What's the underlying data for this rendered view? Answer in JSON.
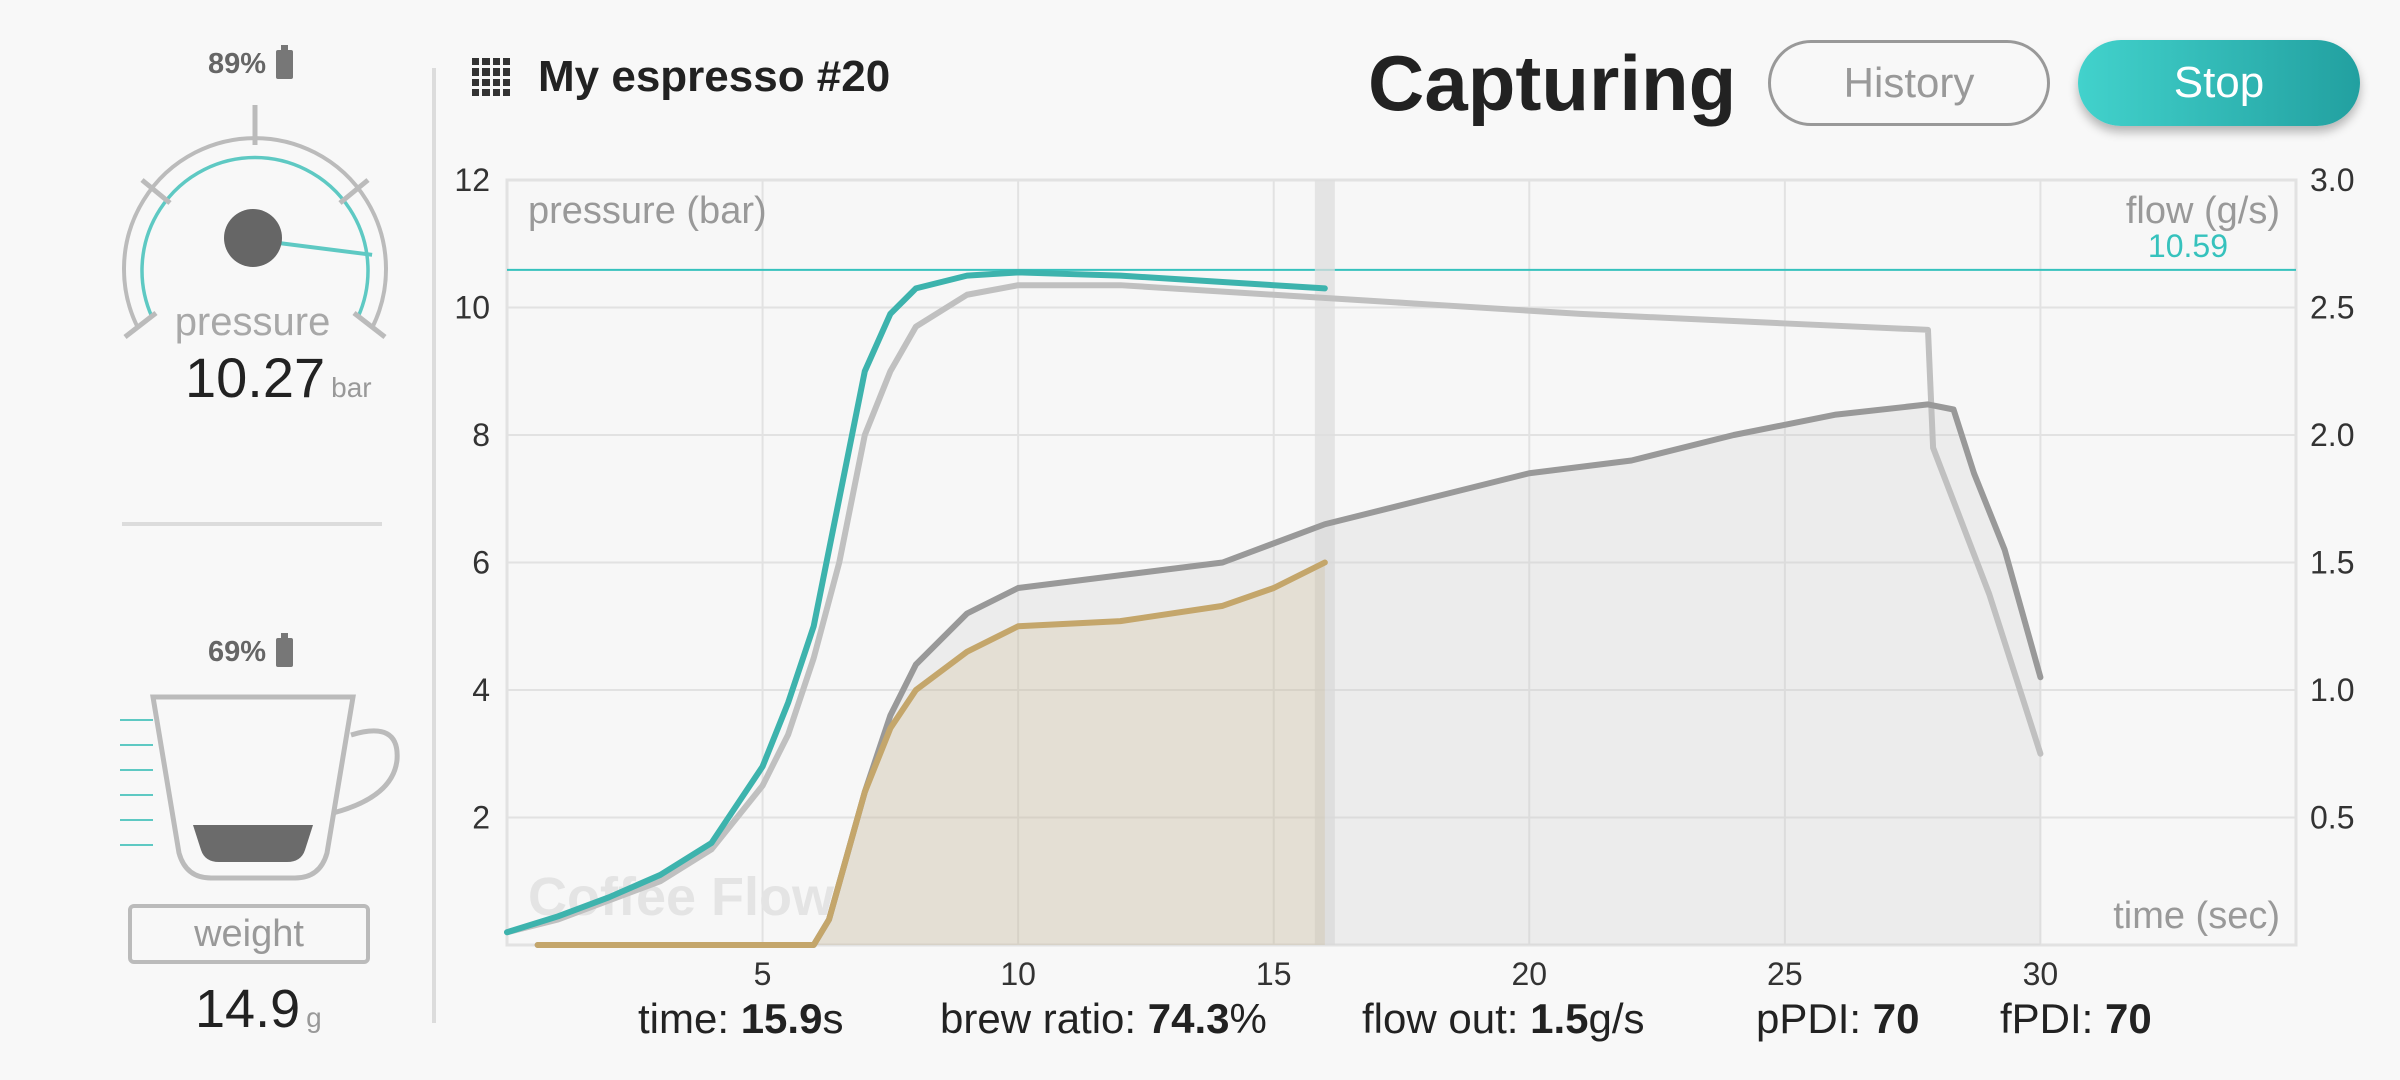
{
  "header": {
    "shot_name": "My espresso #20",
    "status": "Capturing",
    "history_label": "History",
    "stop_label": "Stop"
  },
  "pressure_gauge": {
    "battery": "89%",
    "label": "pressure",
    "value": "10.27",
    "unit": "bar",
    "level_fraction": 0.86
  },
  "weight_gauge": {
    "battery": "69%",
    "label": "weight",
    "value": "14.9",
    "unit": "g"
  },
  "stats": {
    "time_label": "time:",
    "time_value": "15.9",
    "time_unit": "s",
    "ratio_label": "brew ratio:",
    "ratio_value": "74.3",
    "ratio_unit": "%",
    "flow_label": "flow out:",
    "flow_value": "1.5",
    "flow_unit": "g/s",
    "ppdi_label": "pPDI:",
    "ppdi_value": "70",
    "fpdi_label": "fPDI:",
    "fpdi_value": "70"
  },
  "colors": {
    "pressure_live": "#3db3ad",
    "flow_live": "#c4a66b",
    "reference_pressure": "#c0c0c0",
    "reference_flow": "#999999",
    "accent": "#36c2bd"
  },
  "chart_data": {
    "type": "line",
    "ylabel": "pressure (bar)",
    "y2label": "flow (g/s)",
    "xlabel": "time (sec)",
    "watermark": "Coffee Flow",
    "xlim": [
      0,
      35
    ],
    "ylim": [
      0,
      12
    ],
    "y2lim": [
      0,
      3
    ],
    "xticks": [
      5,
      10,
      15,
      20,
      25,
      30
    ],
    "yticks": [
      2,
      4,
      6,
      8,
      10,
      12
    ],
    "y2ticks": [
      "0.5",
      "1.0",
      "1.5",
      "2.0",
      "2.5",
      "3.0"
    ],
    "target_pressure": 10.59,
    "target_label": "10.59",
    "current_time": 16.0,
    "grid": true,
    "series": [
      {
        "axis": "pressure",
        "kind": "reference",
        "points": [
          [
            0,
            0.2
          ],
          [
            1,
            0.4
          ],
          [
            2,
            0.7
          ],
          [
            3,
            1.0
          ],
          [
            4,
            1.5
          ],
          [
            5,
            2.5
          ],
          [
            5.5,
            3.3
          ],
          [
            6,
            4.5
          ],
          [
            6.5,
            6.0
          ],
          [
            7,
            8.0
          ],
          [
            7.5,
            9.0
          ],
          [
            8,
            9.7
          ],
          [
            9,
            10.2
          ],
          [
            10,
            10.35
          ],
          [
            12,
            10.35
          ],
          [
            15,
            10.2
          ],
          [
            18,
            10.05
          ],
          [
            21,
            9.9
          ],
          [
            25,
            9.75
          ],
          [
            27.8,
            9.65
          ],
          [
            27.9,
            7.8
          ],
          [
            29,
            5.5
          ],
          [
            30,
            3.0
          ]
        ]
      },
      {
        "axis": "pressure",
        "kind": "live",
        "points": [
          [
            0,
            0.2
          ],
          [
            1,
            0.45
          ],
          [
            2,
            0.75
          ],
          [
            3,
            1.1
          ],
          [
            4,
            1.6
          ],
          [
            5,
            2.8
          ],
          [
            5.5,
            3.8
          ],
          [
            6,
            5.0
          ],
          [
            6.5,
            7.0
          ],
          [
            7,
            9.0
          ],
          [
            7.5,
            9.9
          ],
          [
            8,
            10.3
          ],
          [
            9,
            10.5
          ],
          [
            10,
            10.55
          ],
          [
            12,
            10.5
          ],
          [
            14,
            10.4
          ],
          [
            16,
            10.3
          ]
        ]
      },
      {
        "axis": "flow",
        "kind": "reference",
        "points": [
          [
            0.6,
            0
          ],
          [
            6,
            0
          ],
          [
            6.3,
            0.1
          ],
          [
            7,
            0.6
          ],
          [
            7.5,
            0.9
          ],
          [
            8,
            1.1
          ],
          [
            9,
            1.3
          ],
          [
            10,
            1.4
          ],
          [
            12,
            1.45
          ],
          [
            14,
            1.5
          ],
          [
            16,
            1.65
          ],
          [
            18,
            1.75
          ],
          [
            20,
            1.85
          ],
          [
            22,
            1.9
          ],
          [
            24,
            2.0
          ],
          [
            26,
            2.08
          ],
          [
            27.8,
            2.12
          ],
          [
            28.3,
            2.1
          ],
          [
            28.7,
            1.85
          ],
          [
            29.3,
            1.55
          ],
          [
            30,
            1.05
          ]
        ]
      },
      {
        "axis": "flow",
        "kind": "live",
        "points": [
          [
            0.6,
            0
          ],
          [
            6,
            0
          ],
          [
            6.3,
            0.1
          ],
          [
            7,
            0.6
          ],
          [
            7.5,
            0.85
          ],
          [
            8,
            1.0
          ],
          [
            9,
            1.15
          ],
          [
            10,
            1.25
          ],
          [
            12,
            1.27
          ],
          [
            14,
            1.33
          ],
          [
            15,
            1.4
          ],
          [
            16,
            1.5
          ]
        ]
      }
    ]
  }
}
